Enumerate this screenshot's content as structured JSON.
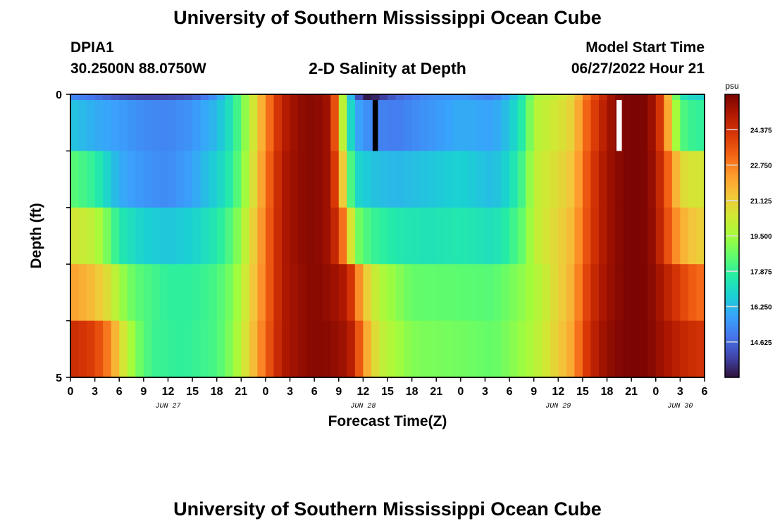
{
  "page": {
    "title": "University of Southern Mississippi Ocean Cube",
    "footer_title": "University of Southern Mississippi Ocean Cube",
    "station_id": "DPIA1",
    "station_coords": "30.2500N  88.0750W",
    "plot_title": "2-D Salinity at Depth",
    "model_start_label": "Model Start Time",
    "model_start_value": "06/27/2022 Hour 21"
  },
  "chart_data": {
    "type": "heatmap",
    "title": "2-D Salinity at Depth",
    "xlabel": "Forecast Time(Z)",
    "ylabel": "Depth (ft)",
    "x_tick_labels": [
      "0",
      "3",
      "6",
      "9",
      "12",
      "15",
      "18",
      "21",
      "0",
      "3",
      "6",
      "9",
      "12",
      "15",
      "18",
      "21",
      "0",
      "3",
      "6",
      "9",
      "12",
      "15",
      "18",
      "21",
      "0",
      "3",
      "6"
    ],
    "day_labels": [
      {
        "label": "JUN 27",
        "at_tick": 4
      },
      {
        "label": "JUN 28",
        "at_tick": 12
      },
      {
        "label": "JUN 29",
        "at_tick": 20
      },
      {
        "label": "JUN 30",
        "at_tick": 25
      }
    ],
    "y_tick_labels": [
      "0",
      "5"
    ],
    "ylim": [
      0,
      5
    ],
    "x_hours": [
      0,
      78
    ],
    "depth_levels": [
      0.5,
      1.5,
      2.5,
      3.5,
      4.5
    ],
    "colorbar": {
      "unit": "psu",
      "min": 13.0,
      "max": 26.0,
      "tick_values": [
        14.625,
        16.25,
        17.875,
        19.5,
        21.125,
        22.75,
        24.375
      ],
      "tick_labels": [
        "14.625",
        "16.250",
        "17.875",
        "19.500",
        "21.125",
        "22.750",
        "24.375"
      ]
    },
    "colormap": [
      "#30123b",
      "#4145ab",
      "#4675ed",
      "#39a2fc",
      "#1bcfd4",
      "#24eca6",
      "#61fc6c",
      "#a4fc3b",
      "#d1e834",
      "#f3c63a",
      "#fe9b2d",
      "#f36315",
      "#d93806",
      "#b11901",
      "#7a0402"
    ],
    "profiles": [
      [
        [
          0,
          15.3
        ],
        [
          3,
          14.8
        ],
        [
          6,
          14.2
        ],
        [
          9,
          13.9
        ],
        [
          12,
          14.0
        ],
        [
          15,
          14.3
        ],
        [
          18,
          15.6
        ],
        [
          20,
          17.5
        ],
        [
          22,
          19.8
        ],
        [
          24,
          22.5
        ],
        [
          26,
          24.8
        ],
        [
          28,
          25.6
        ],
        [
          30,
          25.8
        ],
        [
          32,
          25.2
        ],
        [
          33,
          22.0
        ],
        [
          34,
          17.5
        ],
        [
          35,
          15.0
        ],
        [
          36,
          13.2
        ],
        [
          37,
          13.1
        ],
        [
          38,
          13.6
        ],
        [
          40,
          14.5
        ],
        [
          44,
          15.3
        ],
        [
          48,
          15.5
        ],
        [
          52,
          15.0
        ],
        [
          54,
          16.0
        ],
        [
          56,
          17.8
        ],
        [
          57,
          19.5
        ],
        [
          60,
          20.2
        ],
        [
          62,
          21.0
        ],
        [
          63,
          22.5
        ],
        [
          65,
          24.2
        ],
        [
          67,
          25.7
        ],
        [
          69,
          26.0
        ],
        [
          71,
          25.9
        ],
        [
          72,
          25.0
        ],
        [
          73,
          23.5
        ],
        [
          74,
          20.0
        ],
        [
          75,
          17.5
        ],
        [
          76,
          17.0
        ],
        [
          78,
          16.8
        ]
      ],
      [
        [
          0,
          16.5
        ],
        [
          3,
          16.0
        ],
        [
          6,
          15.7
        ],
        [
          9,
          15.3
        ],
        [
          12,
          15.2
        ],
        [
          15,
          15.5
        ],
        [
          18,
          16.3
        ],
        [
          20,
          17.5
        ],
        [
          22,
          19.8
        ],
        [
          24,
          22.5
        ],
        [
          26,
          24.8
        ],
        [
          28,
          25.6
        ],
        [
          30,
          25.8
        ],
        [
          32,
          25.3
        ],
        [
          33,
          22.0
        ],
        [
          34,
          18.0
        ],
        [
          35,
          16.0
        ],
        [
          37,
          15.2
        ],
        [
          40,
          15.0
        ],
        [
          44,
          15.5
        ],
        [
          48,
          16.0
        ],
        [
          52,
          15.8
        ],
        [
          54,
          16.5
        ],
        [
          56,
          18.0
        ],
        [
          57,
          19.8
        ],
        [
          60,
          20.5
        ],
        [
          62,
          21.2
        ],
        [
          63,
          22.8
        ],
        [
          65,
          24.5
        ],
        [
          67,
          25.7
        ],
        [
          69,
          26.0
        ],
        [
          71,
          25.9
        ],
        [
          72,
          25.0
        ],
        [
          73,
          23.5
        ],
        [
          74,
          20.5
        ],
        [
          75,
          18.5
        ],
        [
          76,
          18.0
        ],
        [
          78,
          17.8
        ]
      ],
      [
        [
          0,
          18.5
        ],
        [
          3,
          17.8
        ],
        [
          6,
          16.0
        ],
        [
          9,
          15.5
        ],
        [
          12,
          15.3
        ],
        [
          15,
          15.8
        ],
        [
          18,
          16.8
        ],
        [
          20,
          17.8
        ],
        [
          22,
          20.0
        ],
        [
          24,
          22.8
        ],
        [
          26,
          25.0
        ],
        [
          28,
          25.6
        ],
        [
          30,
          25.8
        ],
        [
          32,
          25.3
        ],
        [
          33,
          23.0
        ],
        [
          34,
          19.5
        ],
        [
          35,
          17.0
        ],
        [
          37,
          16.5
        ],
        [
          40,
          16.2
        ],
        [
          44,
          16.5
        ],
        [
          48,
          16.8
        ],
        [
          52,
          16.3
        ],
        [
          54,
          17.0
        ],
        [
          56,
          18.5
        ],
        [
          57,
          20.0
        ],
        [
          60,
          20.8
        ],
        [
          62,
          21.5
        ],
        [
          63,
          23.0
        ],
        [
          65,
          24.8
        ],
        [
          67,
          25.7
        ],
        [
          69,
          26.0
        ],
        [
          71,
          25.9
        ],
        [
          72,
          25.2
        ],
        [
          73,
          24.0
        ],
        [
          74,
          22.5
        ],
        [
          75,
          21.0
        ],
        [
          76,
          20.5
        ],
        [
          78,
          20.5
        ]
      ],
      [
        [
          0,
          20.5
        ],
        [
          3,
          20.0
        ],
        [
          5,
          18.5
        ],
        [
          6,
          17.5
        ],
        [
          9,
          16.8
        ],
        [
          12,
          16.5
        ],
        [
          15,
          16.8
        ],
        [
          18,
          17.5
        ],
        [
          20,
          18.5
        ],
        [
          22,
          20.5
        ],
        [
          24,
          23.0
        ],
        [
          26,
          25.0
        ],
        [
          28,
          25.6
        ],
        [
          30,
          25.8
        ],
        [
          32,
          25.3
        ],
        [
          33,
          24.0
        ],
        [
          34,
          22.0
        ],
        [
          35,
          19.0
        ],
        [
          37,
          18.0
        ],
        [
          40,
          17.5
        ],
        [
          44,
          17.3
        ],
        [
          48,
          17.5
        ],
        [
          52,
          17.2
        ],
        [
          54,
          17.8
        ],
        [
          56,
          18.8
        ],
        [
          57,
          20.0
        ],
        [
          60,
          21.0
        ],
        [
          62,
          21.8
        ],
        [
          63,
          23.2
        ],
        [
          65,
          24.8
        ],
        [
          67,
          25.7
        ],
        [
          69,
          26.0
        ],
        [
          71,
          25.9
        ],
        [
          72,
          25.3
        ],
        [
          73,
          24.2
        ],
        [
          74,
          23.0
        ],
        [
          75,
          22.0
        ],
        [
          76,
          21.5
        ],
        [
          78,
          21.0
        ]
      ],
      [
        [
          0,
          22.2
        ],
        [
          3,
          21.5
        ],
        [
          5,
          20.5
        ],
        [
          6,
          19.5
        ],
        [
          8,
          18.5
        ],
        [
          12,
          17.8
        ],
        [
          15,
          17.8
        ],
        [
          18,
          18.2
        ],
        [
          20,
          19.0
        ],
        [
          22,
          20.8
        ],
        [
          24,
          23.0
        ],
        [
          26,
          25.0
        ],
        [
          28,
          25.5
        ],
        [
          30,
          25.8
        ],
        [
          32,
          25.5
        ],
        [
          34,
          25.0
        ],
        [
          35,
          23.5
        ],
        [
          36,
          21.5
        ],
        [
          38,
          19.8
        ],
        [
          42,
          18.6
        ],
        [
          48,
          18.5
        ],
        [
          52,
          18.4
        ],
        [
          54,
          18.8
        ],
        [
          56,
          19.3
        ],
        [
          58,
          20.0
        ],
        [
          60,
          21.0
        ],
        [
          62,
          22.0
        ],
        [
          63,
          23.5
        ],
        [
          65,
          25.0
        ],
        [
          67,
          25.7
        ],
        [
          69,
          26.0
        ],
        [
          71,
          25.9
        ],
        [
          72,
          25.5
        ],
        [
          74,
          24.5
        ],
        [
          76,
          23.5
        ],
        [
          78,
          23.0
        ]
      ],
      [
        [
          0,
          24.5
        ],
        [
          3,
          24.0
        ],
        [
          5,
          22.5
        ],
        [
          6,
          21.0
        ],
        [
          8,
          19.0
        ],
        [
          10,
          18.0
        ],
        [
          14,
          17.8
        ],
        [
          18,
          18.2
        ],
        [
          20,
          19.2
        ],
        [
          22,
          21.0
        ],
        [
          24,
          23.2
        ],
        [
          26,
          25.0
        ],
        [
          28,
          25.5
        ],
        [
          30,
          25.8
        ],
        [
          32,
          25.7
        ],
        [
          34,
          25.3
        ],
        [
          35,
          24.5
        ],
        [
          36,
          22.5
        ],
        [
          38,
          20.2
        ],
        [
          42,
          19.0
        ],
        [
          48,
          18.8
        ],
        [
          52,
          18.6
        ],
        [
          54,
          19.0
        ],
        [
          56,
          19.5
        ],
        [
          58,
          20.2
        ],
        [
          60,
          21.2
        ],
        [
          62,
          22.2
        ],
        [
          63,
          23.8
        ],
        [
          65,
          25.2
        ],
        [
          67,
          25.8
        ],
        [
          69,
          26.0
        ],
        [
          71,
          25.9
        ],
        [
          72,
          25.6
        ],
        [
          74,
          25.0
        ],
        [
          76,
          24.5
        ],
        [
          78,
          24.3
        ]
      ]
    ],
    "missing_cells": [
      {
        "hour": 37,
        "color": "#000000"
      },
      {
        "hour": 67,
        "color": "#ffffff"
      }
    ]
  }
}
